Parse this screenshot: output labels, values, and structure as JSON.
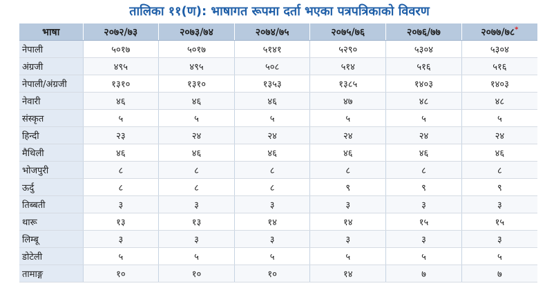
{
  "title": "तालिका ११(ण): भाषागत रूपमा दर्ता भएका पत्रपत्रिकाको विवरण",
  "headers": [
    "भाषा",
    "२०७२/७३",
    "२०७३/७४",
    "२०७४/७५",
    "२०७५/७६",
    "२०७६/७७",
    "२०७७/७८"
  ],
  "last_header_mark": "*",
  "rows": [
    [
      "नेपाली",
      "५०१७",
      "५०१७",
      "५१४१",
      "५२९०",
      "५३०४",
      "५३०४"
    ],
    [
      "अंग्रजी",
      "४९५",
      "४९५",
      "५०८",
      "५१४",
      "५१६",
      "५१६"
    ],
    [
      "नेपाली/अंग्रजी",
      "१३१०",
      "१३१०",
      "१३५३",
      "१३८५",
      "१४०३",
      "१४०३"
    ],
    [
      "नेवारी",
      "४६",
      "४६",
      "४६",
      "४७",
      "४८",
      "४८"
    ],
    [
      "संस्कृत",
      "५",
      "५",
      "५",
      "५",
      "५",
      "५"
    ],
    [
      "हिन्दी",
      "२३",
      "२४",
      "२४",
      "२४",
      "२४",
      "२४"
    ],
    [
      "मैथिली",
      "४६",
      "४६",
      "४६",
      "४६",
      "४६",
      "४६"
    ],
    [
      "भोजपुरी",
      "८",
      "८",
      "८",
      "८",
      "८",
      "८"
    ],
    [
      "ऊर्दु",
      "८",
      "८",
      "८",
      "९",
      "९",
      "९"
    ],
    [
      "तिब्बती",
      "३",
      "३",
      "३",
      "३",
      "३",
      "३"
    ],
    [
      "थारू",
      "१३",
      "१३",
      "१४",
      "१४",
      "१५",
      "१५"
    ],
    [
      "लिम्बू",
      "३",
      "३",
      "३",
      "३",
      "३",
      "३"
    ],
    [
      "डोटेली",
      "५",
      "५",
      "५",
      "५",
      "५",
      "५"
    ],
    [
      "तामाङ्ग",
      "१०",
      "१०",
      "१०",
      "१४",
      "७",
      "७"
    ]
  ]
}
